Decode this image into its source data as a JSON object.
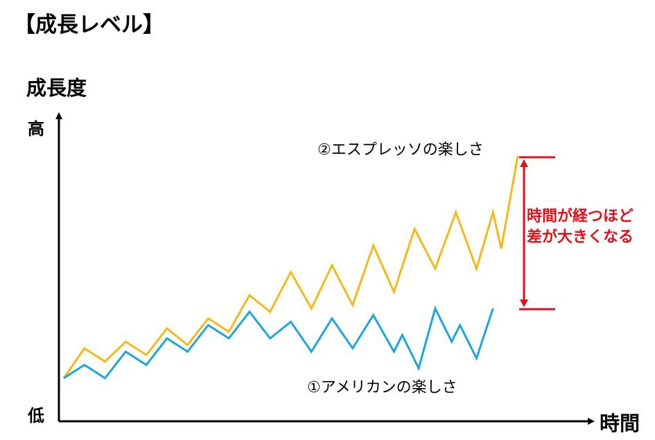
{
  "title": "【成長レベル】",
  "ylabel": "成長度",
  "y_ticks": {
    "high": "高",
    "low": "低"
  },
  "xlabel": "時間",
  "annotation": {
    "line1": "時間が経つほど",
    "line2": "差が大きくなる",
    "color": "#e0101a"
  },
  "colors": {
    "espresso": "#f5b917",
    "american": "#1aa6dd",
    "axis": "#000000"
  },
  "chart_data": {
    "type": "line",
    "title": "【成長レベル】",
    "xlabel": "時間",
    "ylabel": "成長度",
    "ylim": [
      0,
      100
    ],
    "y_tick_labels": [
      "低",
      "高"
    ],
    "grid": false,
    "series": [
      {
        "name": "②エスプレッソの楽しさ",
        "color": "#f5b917",
        "points": [
          [
            0,
            13
          ],
          [
            5,
            22
          ],
          [
            10,
            18
          ],
          [
            15,
            24
          ],
          [
            20,
            20
          ],
          [
            25,
            28
          ],
          [
            30,
            23
          ],
          [
            35,
            31
          ],
          [
            40,
            27
          ],
          [
            45,
            38
          ],
          [
            50,
            33
          ],
          [
            55,
            45
          ],
          [
            60,
            34
          ],
          [
            65,
            47
          ],
          [
            70,
            35
          ],
          [
            75,
            53
          ],
          [
            80,
            39
          ],
          [
            85,
            58
          ],
          [
            90,
            46
          ],
          [
            95,
            63
          ],
          [
            100,
            46
          ],
          [
            104,
            63
          ],
          [
            106,
            52
          ],
          [
            110,
            80
          ]
        ]
      },
      {
        "name": "①アメリカンの楽しさ",
        "color": "#1aa6dd",
        "points": [
          [
            0,
            13
          ],
          [
            5,
            17
          ],
          [
            10,
            13
          ],
          [
            15,
            21
          ],
          [
            20,
            17
          ],
          [
            25,
            25
          ],
          [
            30,
            21
          ],
          [
            35,
            29
          ],
          [
            40,
            25
          ],
          [
            45,
            33
          ],
          [
            50,
            25
          ],
          [
            55,
            30
          ],
          [
            60,
            21
          ],
          [
            65,
            31
          ],
          [
            70,
            22
          ],
          [
            75,
            32
          ],
          [
            80,
            21
          ],
          [
            82,
            26
          ],
          [
            86,
            16
          ],
          [
            90,
            34
          ],
          [
            94,
            24
          ],
          [
            96,
            29
          ],
          [
            100,
            19
          ],
          [
            104,
            34
          ]
        ]
      }
    ],
    "annotation": {
      "text": "時間が経つほど差が大きくなる",
      "between": "end values of both series",
      "color": "#e0101a"
    }
  }
}
